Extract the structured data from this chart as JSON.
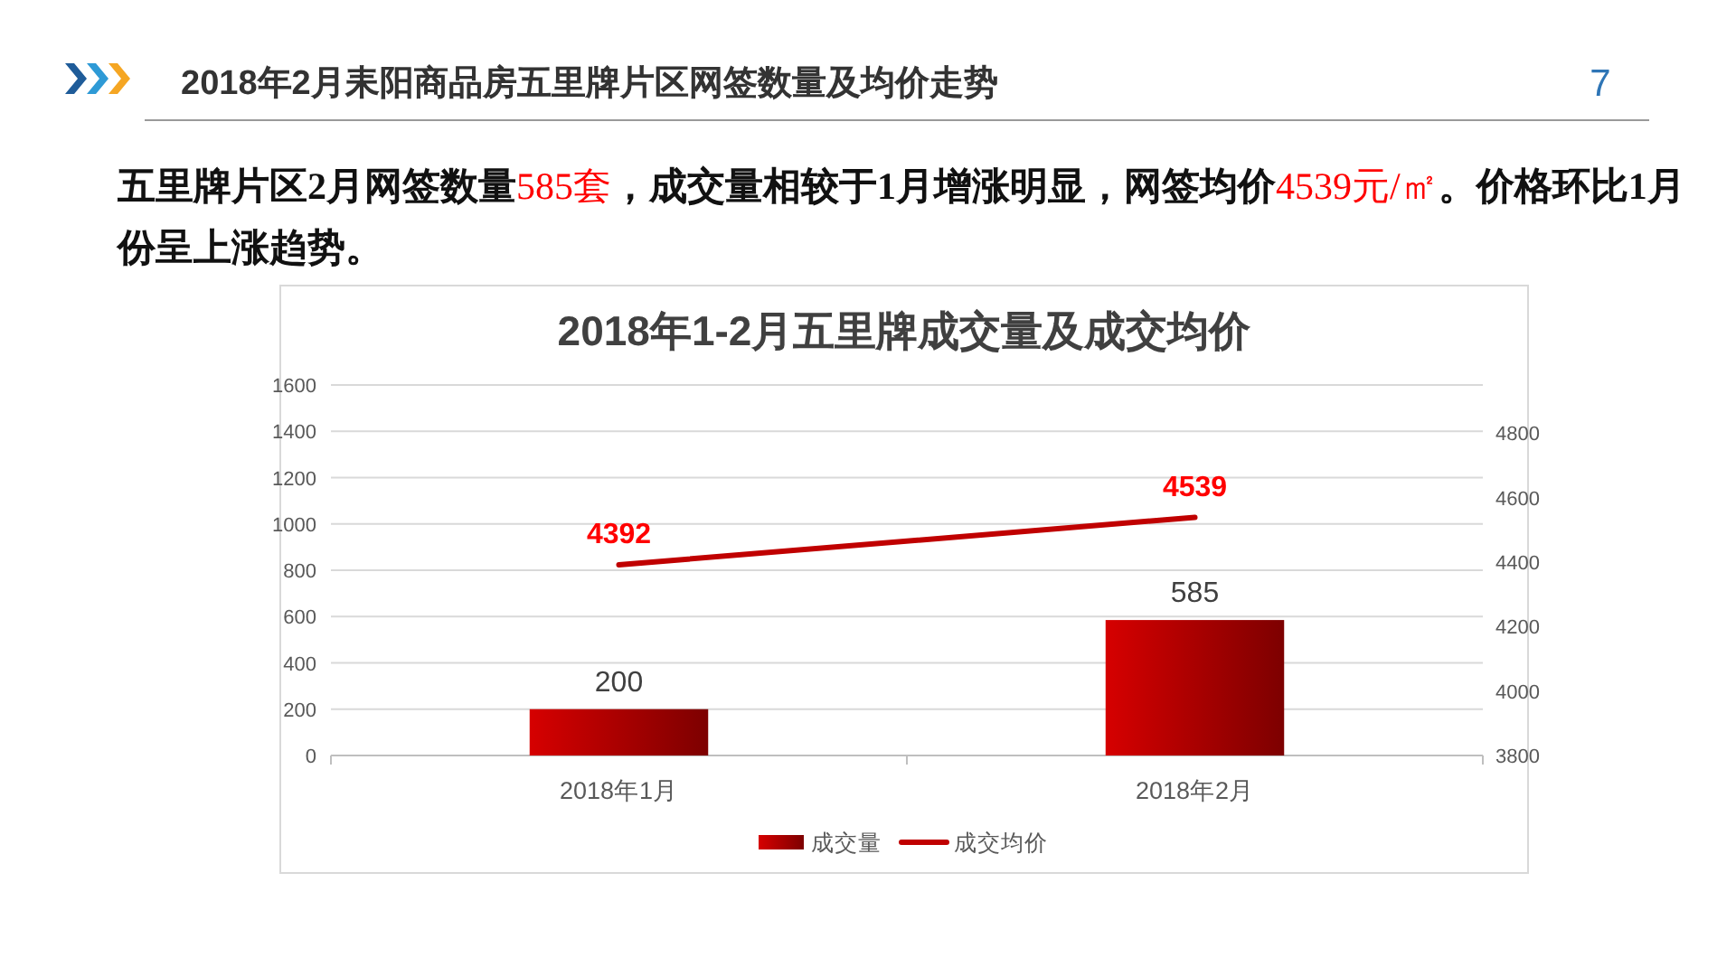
{
  "chart_data": {
    "type": "bar",
    "title": "2018年1-2月五里牌成交量及成交均价",
    "annotations": [
      "2018年2月耒阳商品房五里牌片区网签数量及均价走势",
      "五里牌片区2月网签数量585套，成交量相较于1月增涨明显，网签均价4539元/㎡。价格环比1月份呈上涨趋势。",
      "7"
    ],
    "categories": [
      "2018年1月",
      "2018年2月"
    ],
    "series": [
      {
        "name": "成交量",
        "color": "#c00000",
        "values": [
          200,
          585
        ]
      },
      {
        "name": "成交均价",
        "type": "line",
        "axis": "y2",
        "color": "#c00000",
        "values": [
          4392,
          4539
        ]
      }
    ],
    "ylim": [
      0,
      1600
    ],
    "yticks": [
      0,
      200,
      400,
      600,
      800,
      1000,
      1200,
      1400,
      1600
    ],
    "y2lim": [
      3800,
      4950
    ],
    "y2ticks": [
      3800,
      4000,
      4200,
      4400,
      4600,
      4800
    ],
    "grid": "y",
    "legend": "bottom",
    "data_labels": true
  }
}
